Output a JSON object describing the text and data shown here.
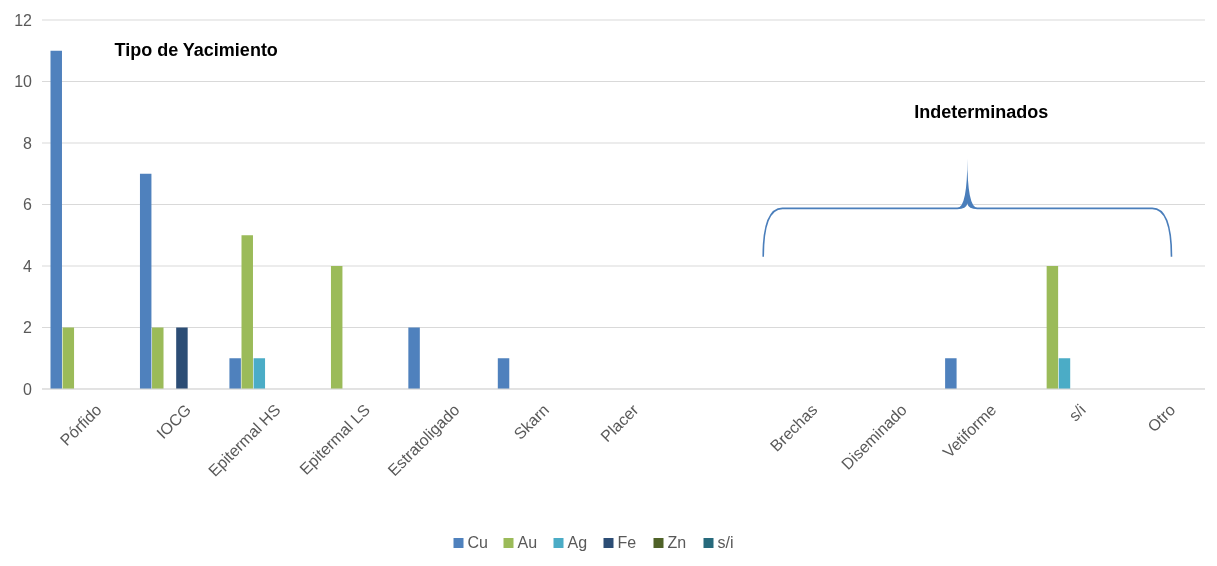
{
  "chart_data": {
    "type": "bar",
    "categories": [
      "Pórfido",
      "IOCG",
      "Epitermal HS",
      "Epitermal LS",
      "Estratoligado",
      "Skarn",
      "Placer",
      null,
      "Brechas",
      "Diseminado",
      "Vetiforme",
      "s/i",
      "Otro"
    ],
    "series": [
      {
        "name": "Cu",
        "color": "#4f81bd",
        "values": [
          11,
          7,
          1,
          0,
          2,
          1,
          0,
          null,
          0,
          0,
          1,
          0,
          0
        ]
      },
      {
        "name": "Au",
        "color": "#9bbb59",
        "values": [
          2,
          2,
          5,
          4,
          0,
          0,
          0,
          null,
          0,
          0,
          0,
          4,
          0
        ]
      },
      {
        "name": "Ag",
        "color": "#4bacc6",
        "values": [
          0,
          0,
          1,
          0,
          0,
          0,
          0,
          null,
          0,
          0,
          0,
          1,
          0
        ]
      },
      {
        "name": "Fe",
        "color": "#2c4d75",
        "values": [
          0,
          2,
          0,
          0,
          0,
          0,
          0,
          null,
          0,
          0,
          0,
          0,
          0
        ]
      },
      {
        "name": "Zn",
        "color": "#4f6228",
        "values": [
          0,
          0,
          0,
          0,
          0,
          0,
          0,
          null,
          0,
          0,
          0,
          0,
          0
        ]
      },
      {
        "name": "s/i",
        "color": "#276a7c",
        "values": [
          0,
          0,
          0,
          0,
          0,
          0,
          0,
          null,
          0,
          0,
          0,
          0,
          0
        ]
      }
    ],
    "ylim": [
      0,
      12
    ],
    "yticks": [
      0,
      2,
      4,
      6,
      8,
      10,
      12
    ],
    "grid": "y",
    "legend": "bottom",
    "annotations": [
      "Tipo de Yacimiento",
      "Indeterminados"
    ]
  }
}
